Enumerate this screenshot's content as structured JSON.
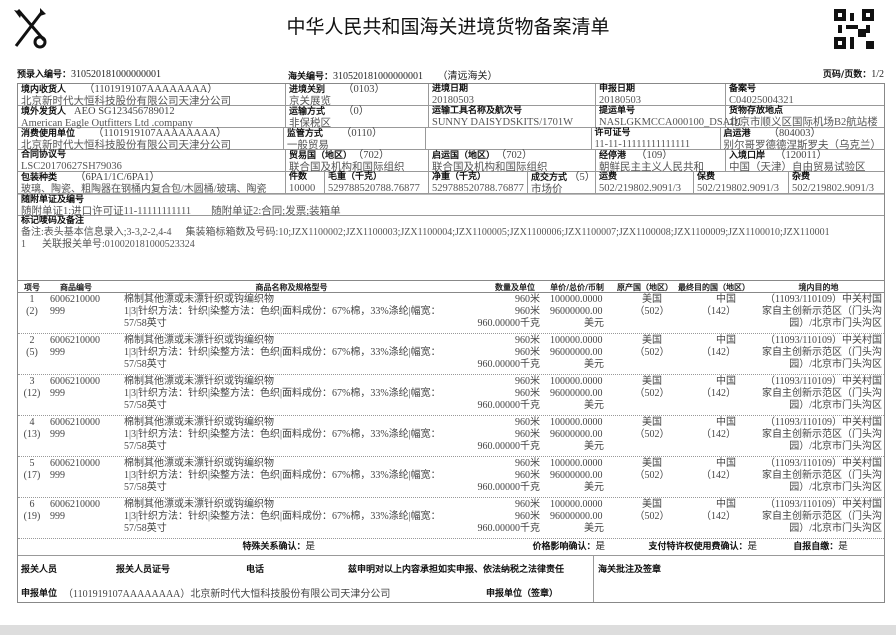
{
  "header": {
    "title": "中华人民共和国海关进境货物备案清单",
    "pre_entry_label": "预录入编号：",
    "pre_entry_no": "310520181000000001",
    "customs_no_label": "海关编号：",
    "customs_no": "310520181000000001",
    "customs_office": "（清远海关）",
    "page_label": "页码/页数：",
    "page": "1/2"
  },
  "fields": {
    "consignee": {
      "label": "境内收货人",
      "code": "（1101919107AAAAAAAA）",
      "value": "北京新时代大恒科技股份有限公司天津分公司"
    },
    "entry_customs": {
      "label": "进境关别",
      "code": "（0103）",
      "value": "京关展览"
    },
    "entry_date": {
      "label": "进境日期",
      "value": "20180503"
    },
    "declare_date": {
      "label": "申报日期",
      "value": "20180503"
    },
    "record_no": {
      "label": "备案号",
      "value": "C04025004321"
    },
    "consignor": {
      "label": "境外发货人",
      "code": "AEO SG123456789012",
      "value": "American Eagle Outfitters  Ltd .company"
    },
    "transport_mode": {
      "label": "运输方式",
      "code": "（0）",
      "value": "非保税区"
    },
    "vessel": {
      "label": "运输工具名称及航次号",
      "value": "SUNNY DAISYDSKITS/1701W"
    },
    "bl_no": {
      "label": "提运单号",
      "value": "NASLGKMCCA000100_DSADI"
    },
    "storage": {
      "label": "货物存放地点",
      "value": "北京市顺义区国际机场B2航站楼"
    },
    "consumer": {
      "label": "消费使用单位",
      "code": "（1101919107AAAAAAAA）",
      "value": "北京新时代大恒科技股份有限公司天津分公司"
    },
    "supervision": {
      "label": "监管方式",
      "code": "（0110）",
      "value": "一般贸易"
    },
    "license": {
      "label": "许可证号",
      "value": "11-11-11111111111111"
    },
    "departure_port": {
      "label": "启运港",
      "code": "（804003）",
      "value": "别尔哥罗德德涅斯罗夫（乌克兰）"
    },
    "contract": {
      "label": "合同协议号",
      "value": "LSC20170627SH79036"
    },
    "trade_country": {
      "label": "贸易国（地区）",
      "code": "（702）",
      "value": "联合国及机构和国际组织"
    },
    "origin_country": {
      "label": "启运国（地区）",
      "code": "（702）",
      "value": "联合国及机构和国际组织"
    },
    "transit_port": {
      "label": "经停港",
      "code": "（109）",
      "value": "朝鲜民主主义人民共和"
    },
    "entry_port": {
      "label": "入境口岸",
      "code": "（120011）",
      "value": "中国（天津）自由贸易试验区"
    },
    "package": {
      "label": "包装种类",
      "code": "（6PA1/1C/6PA1）",
      "value": "玻璃、陶瓷、粗陶器在钢桶内复合包/木圆桶/玻璃、陶瓷"
    },
    "pieces": {
      "label": "件数",
      "value": "10000"
    },
    "gross": {
      "label": "毛重（千克）",
      "value": "529788520788.76877"
    },
    "net": {
      "label": "净重（千克）",
      "value": "529788520788.76877"
    },
    "deal": {
      "label": "成交方式",
      "code": "（5）",
      "value": "市场价"
    },
    "freight": {
      "label": "运费",
      "value": "502/219802.9091/3"
    },
    "insurance": {
      "label": "保费",
      "value": "502/219802.9091/3"
    },
    "misc": {
      "label": "杂费",
      "value": "502/219802.9091/3"
    },
    "docs": {
      "label": "随附单证及编号",
      "doc1": "随附单证1:进口许可证11-11111111111",
      "doc2": "随附单证2:合同;发票;装箱单"
    },
    "marks": {
      "label": "标记唛码及备注",
      "line1a": "备注:表头基本信息录入;3-3,2-2,4-4",
      "line1b": "集装箱标箱数及号码:10;JZX1100002;JZX1100003;JZX1100004;JZX1100005;JZX1100006;JZX1100007;JZX1100008;JZX1100009;JZX1100010;JZX110001",
      "line2a": "1",
      "line2b": "关联报关单号:010020181000523324"
    }
  },
  "items_header": [
    "项号",
    "商品编号",
    "商品名称及规格型号",
    "数量及单位",
    "单价/总价/币制",
    "原产国（地区）",
    "最终目的国（地区）",
    "境内目的地"
  ],
  "items": [
    {
      "no": "1",
      "sub": "(2)"
    },
    {
      "no": "2",
      "sub": "(5)"
    },
    {
      "no": "3",
      "sub": "(12)"
    },
    {
      "no": "4",
      "sub": "(13)"
    },
    {
      "no": "5",
      "sub": "(17)"
    },
    {
      "no": "6",
      "sub": "(19)"
    }
  ],
  "item_common": {
    "code": "6006210000",
    "code2": "999",
    "name": "棉制其他漂或未漂针织或钩编织物",
    "spec": "1|3|针织方法：针织|染整方法：色织|面料成份：67%棉，33%涤纶|幅宽：",
    "spec2": "57/58英寸",
    "qty1": "960米",
    "qty2": "960米",
    "qty3": "960.00000千克",
    "price": "100000.0000",
    "total": "96000000.00",
    "currency": "美元",
    "origin": "美国",
    "origin_code": "（502）",
    "dest": "中国",
    "dest_code": "（142）",
    "domestic1": "（11093/110109）中关村国",
    "domestic2": "家自主创新示范区（门头沟",
    "domestic3": "园）/北京市门头沟区"
  },
  "footer": {
    "special_label": "特殊关系确认：",
    "special": "是",
    "price_label": "价格影响确认：",
    "price": "是",
    "royalty_label": "支付特许权使用费确认：",
    "royalty": "是",
    "self_label": "自报自缴：",
    "self": "是",
    "declarant": "报关人员",
    "declarant_id": "报关人员证号",
    "phone": "电话",
    "statement": "兹申明对以上内容承担如实申报、依法纳税之法律责任",
    "customs_note": "海关批注及签章",
    "unit_label": "申报单位",
    "unit_value": "（1101919107AAAAAAAA）北京新时代大恒科技股份有限公司天津分公司",
    "seal": "申报单位（签章）"
  }
}
